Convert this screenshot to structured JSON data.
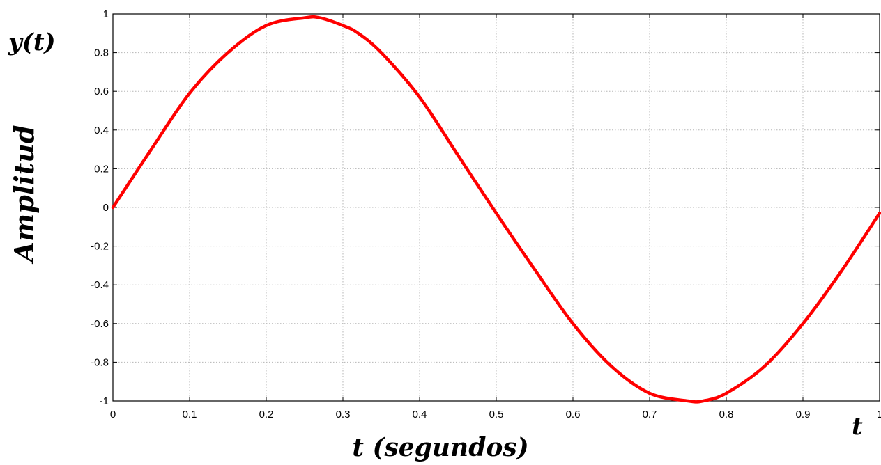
{
  "chart_data": {
    "type": "line",
    "title": "",
    "ylabel_top": "y(t)",
    "ylabel": "Amplitud",
    "xlabel": "t (segundos)",
    "xlabel_right": "t",
    "xlim": [
      0,
      1
    ],
    "ylim": [
      -1,
      1
    ],
    "grid": true,
    "line_color": "#ff0000",
    "x_ticks": [
      0,
      0.1,
      0.2,
      0.3,
      0.4,
      0.5,
      0.6,
      0.7,
      0.8,
      0.9,
      1
    ],
    "x_tick_labels": [
      "0",
      "0.1",
      "0.2",
      "0.3",
      "0.4",
      "0.5",
      "0.6",
      "0.7",
      "0.8",
      "0.9",
      "1"
    ],
    "y_ticks": [
      -1,
      -0.8,
      -0.6,
      -0.4,
      -0.2,
      0,
      0.2,
      0.4,
      0.6,
      0.8,
      1
    ],
    "y_tick_labels": [
      "-1",
      "-0.8",
      "-0.6",
      "-0.4",
      "-0.2",
      "0",
      "0.2",
      "0.4",
      "0.6",
      "0.8",
      "1"
    ],
    "series": [
      {
        "x": [
          0,
          0.05,
          0.1,
          0.15,
          0.2,
          0.25,
          0.27,
          0.3,
          0.32,
          0.35,
          0.4,
          0.45,
          0.5,
          0.55,
          0.6,
          0.65,
          0.7,
          0.75,
          0.77,
          0.8,
          0.85,
          0.9,
          0.95,
          1.0
        ],
        "y": [
          0,
          0.3,
          0.59,
          0.8,
          0.94,
          0.98,
          0.98,
          0.94,
          0.9,
          0.8,
          0.57,
          0.27,
          -0.03,
          -0.32,
          -0.6,
          -0.82,
          -0.96,
          -1.0,
          -1.0,
          -0.96,
          -0.82,
          -0.6,
          -0.33,
          -0.03
        ]
      }
    ]
  }
}
